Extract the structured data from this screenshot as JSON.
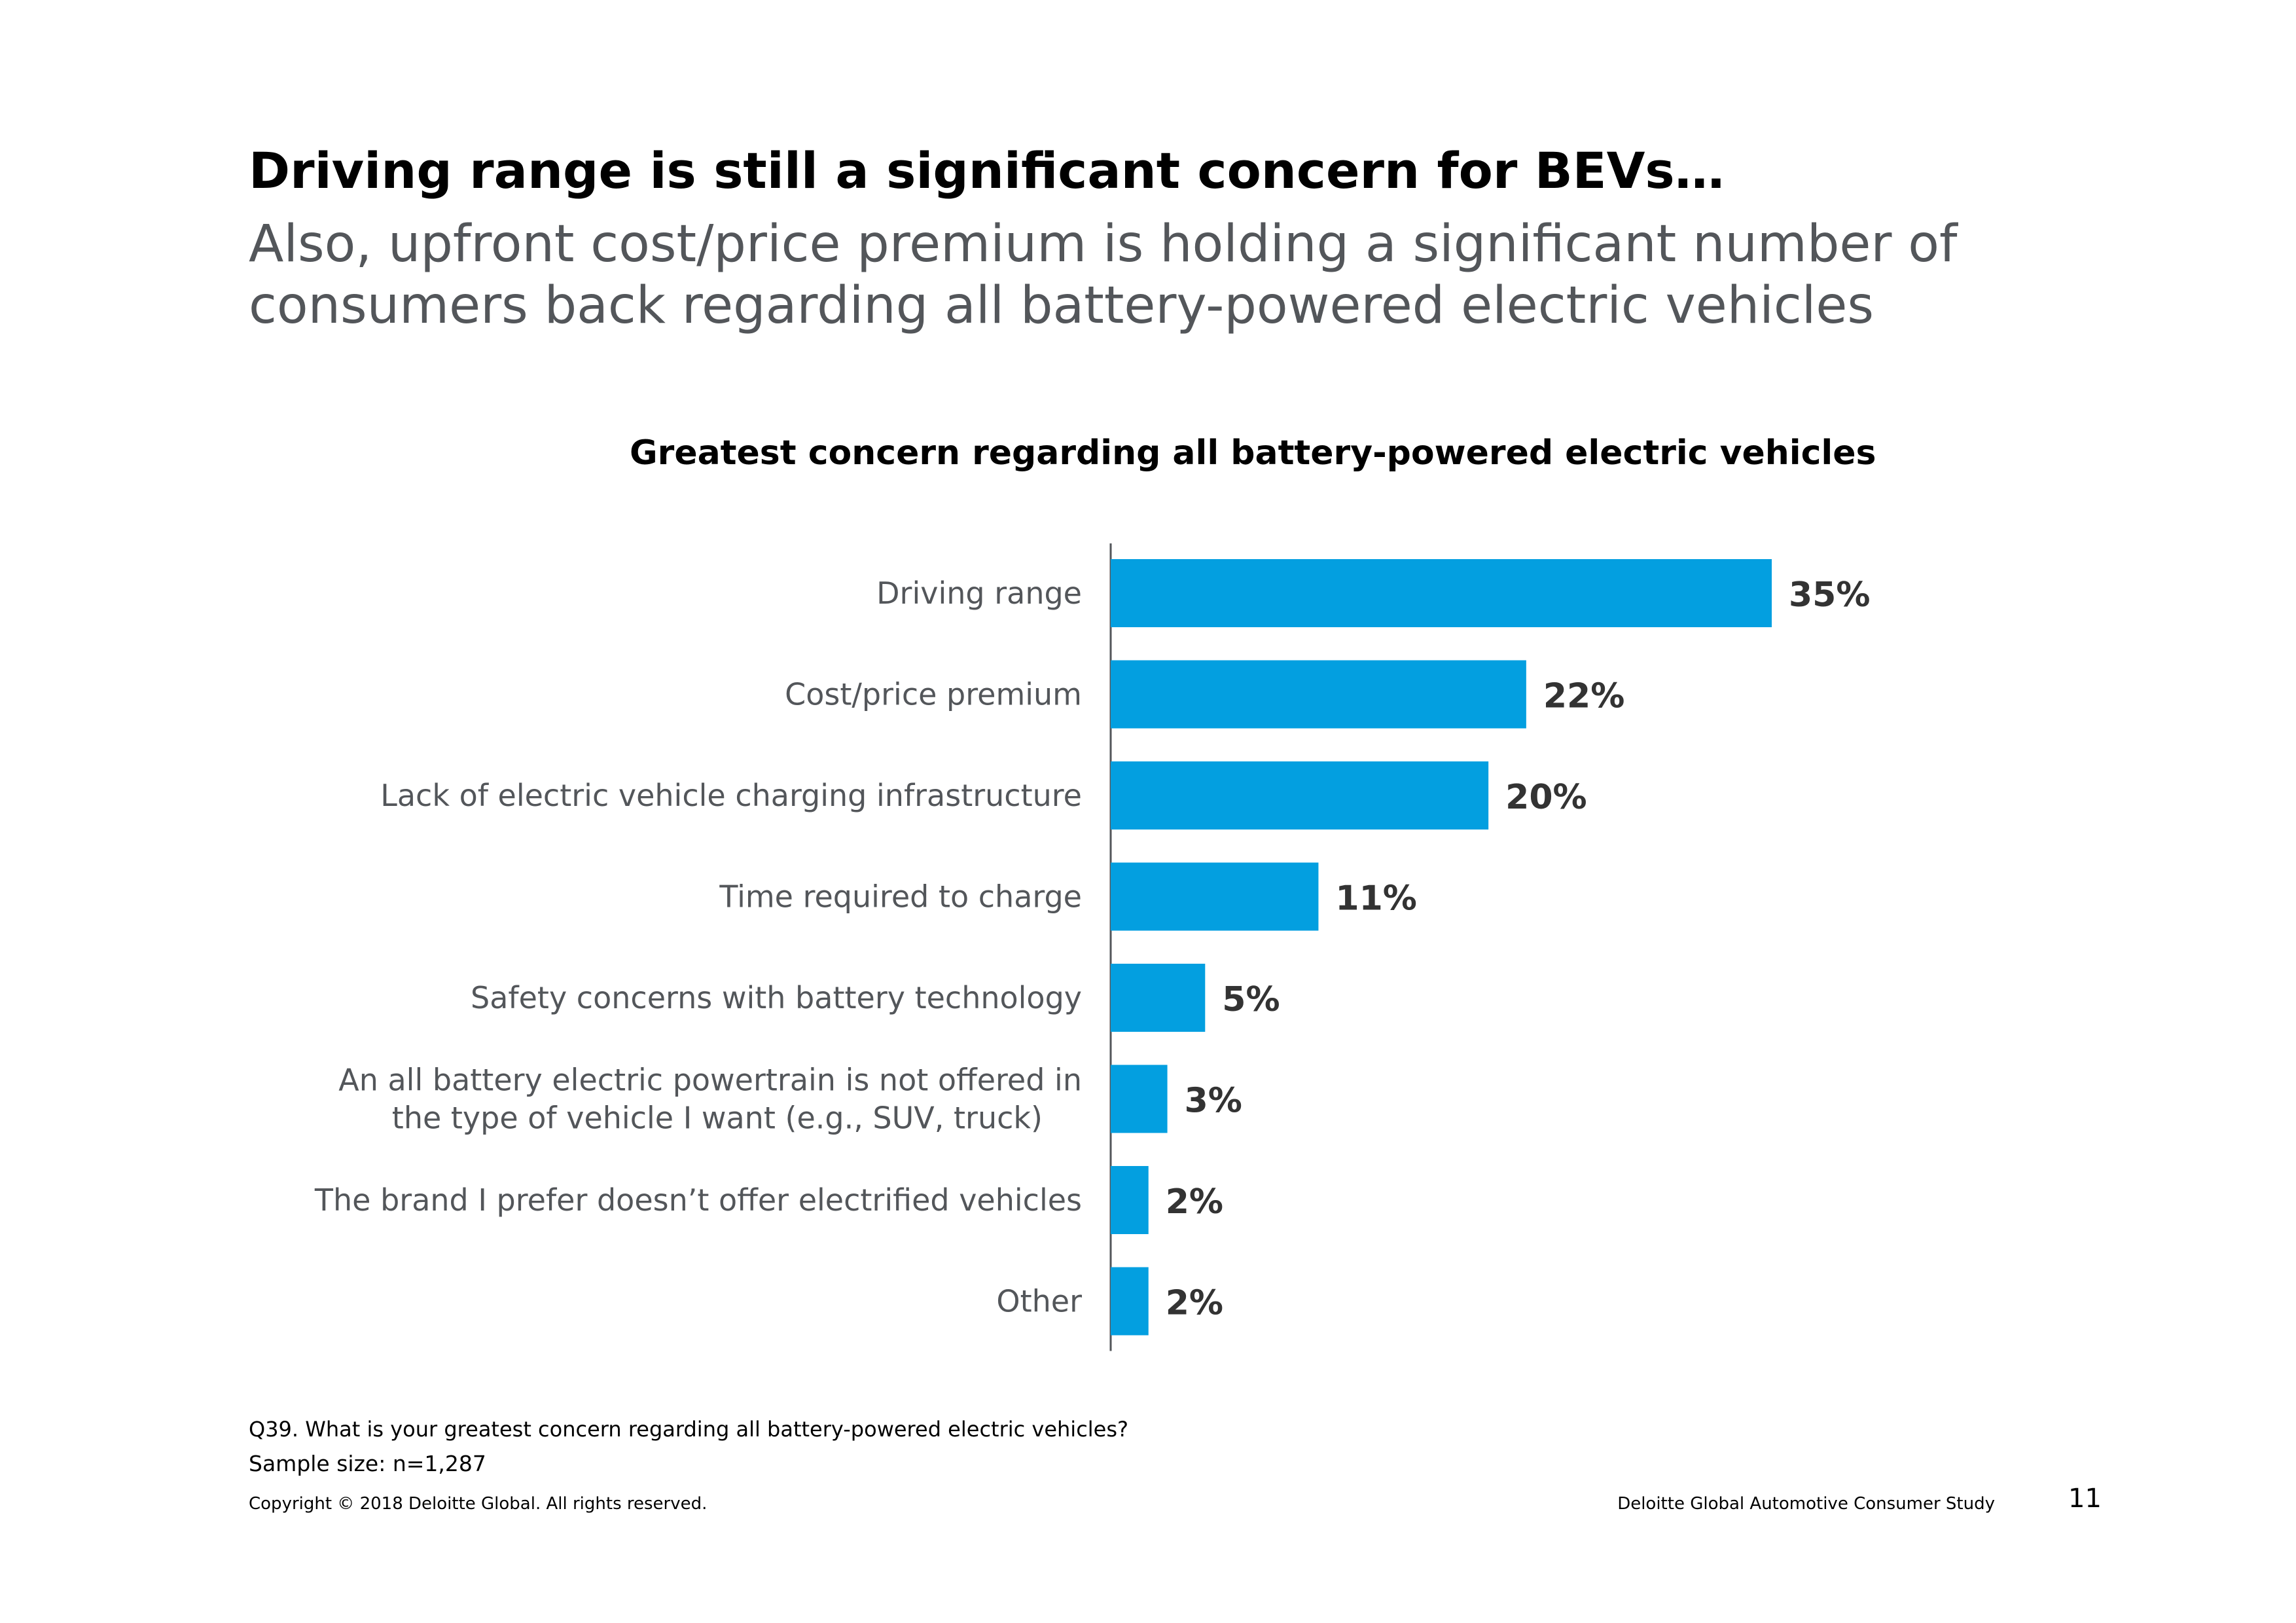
{
  "headline": "Driving range is still a significant concern for BEVs…",
  "subheadline": "Also, upfront cost/price premium is holding a significant number of consumers back regarding all battery-powered electric vehicles",
  "chart_data": {
    "type": "bar",
    "orientation": "horizontal",
    "title": "Greatest concern regarding all battery-powered electric vehicles",
    "categories": [
      [
        "Driving range"
      ],
      [
        "Cost/price premium"
      ],
      [
        "Lack of electric vehicle charging infrastructure"
      ],
      [
        "Time required to charge"
      ],
      [
        "Safety concerns with battery technology"
      ],
      [
        "An all battery electric powertrain is not offered in",
        "the type of vehicle I want (e.g., SUV, truck)"
      ],
      [
        "The brand I prefer doesn’t offer electrified vehicles"
      ],
      [
        "Other"
      ]
    ],
    "values": [
      35,
      22,
      20,
      11,
      5,
      3,
      2,
      2
    ],
    "value_labels": [
      "35%",
      "22%",
      "20%",
      "11%",
      "5%",
      "3%",
      "2%",
      "2%"
    ],
    "xlim": [
      0,
      35
    ],
    "bar_color": "#039fe0",
    "label_color": "#53565a",
    "value_label_color": "#333333",
    "axis_color": "#53565a",
    "grid": false,
    "legend": "none"
  },
  "footnote": "Q39. What is your greatest concern regarding all battery-powered electric vehicles?",
  "sample_size": "Sample size: n=1,287",
  "copyright": "Copyright © 2018 Deloitte Global. All rights reserved.",
  "study_name": "Deloitte Global Automotive Consumer Study",
  "page_number": "11"
}
